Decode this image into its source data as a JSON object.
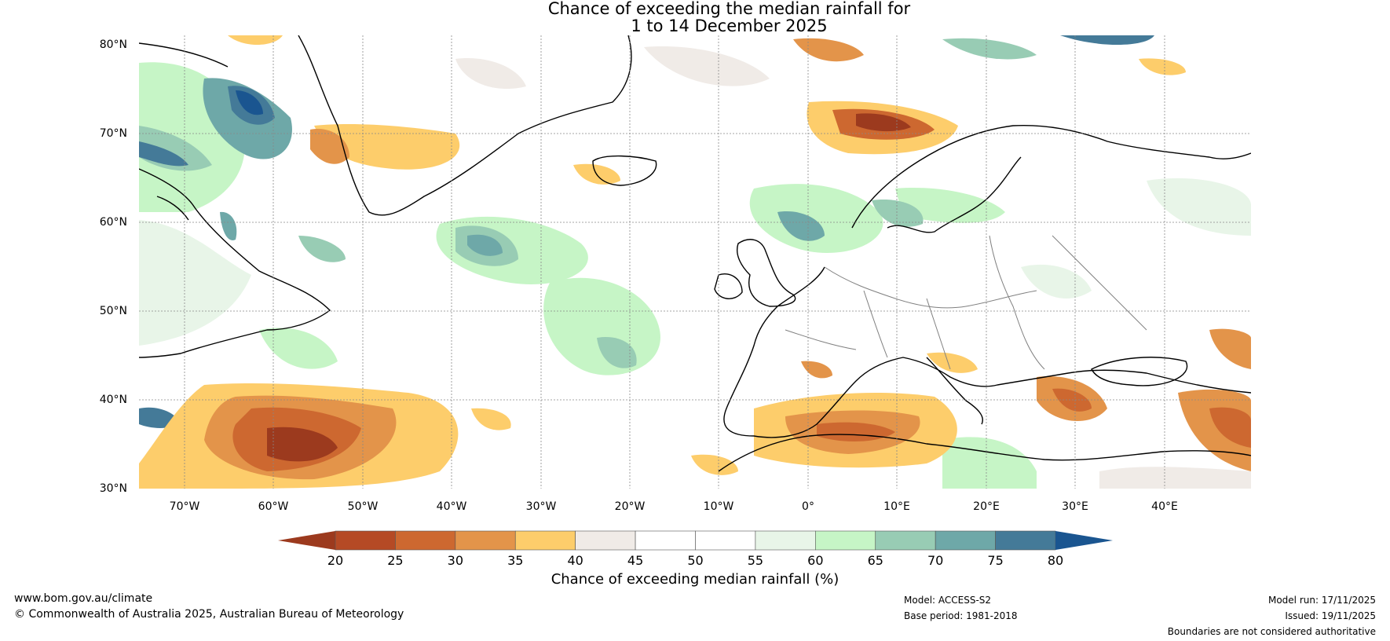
{
  "title": {
    "line1": "Chance of exceeding the median rainfall for",
    "line2": "1 to 14 December 2025"
  },
  "map": {
    "region": "North Atlantic and Europe",
    "lat_labels": [
      "80°N",
      "70°N",
      "60°N",
      "50°N",
      "40°N",
      "30°N"
    ],
    "lon_labels": [
      "70°W",
      "60°W",
      "50°W",
      "40°W",
      "30°W",
      "20°W",
      "10°W",
      "0°",
      "10°E",
      "20°E",
      "30°E",
      "40°E"
    ]
  },
  "colorbar": {
    "label": "Chance of exceeding median rainfall (%)",
    "ticks": [
      "20",
      "25",
      "30",
      "35",
      "40",
      "45",
      "50",
      "55",
      "60",
      "65",
      "70",
      "75",
      "80"
    ],
    "colors": [
      "#9c3a1e",
      "#b54a25",
      "#cd6830",
      "#e3944a",
      "#fdcd6b",
      "#f0ebe7",
      "#ffffff",
      "#ffffff",
      "#e8f5e8",
      "#c6f5c6",
      "#98ccb4",
      "#6ea8a8",
      "#447a98",
      "#1a5590"
    ],
    "low_color": "#9c3a1e",
    "high_color": "#1a5590"
  },
  "footer": {
    "url": "www.bom.gov.au/climate",
    "copyright": "© Commonwealth of Australia 2025, Australian Bureau of Meteorology",
    "model": "Model: ACCESS-S2",
    "base_period": "Base period: 1981-2018",
    "model_run": "Model run: 17/11/2025",
    "issued": "Issued: 19/11/2025",
    "disclaimer": "Boundaries are not considered authoritative"
  }
}
